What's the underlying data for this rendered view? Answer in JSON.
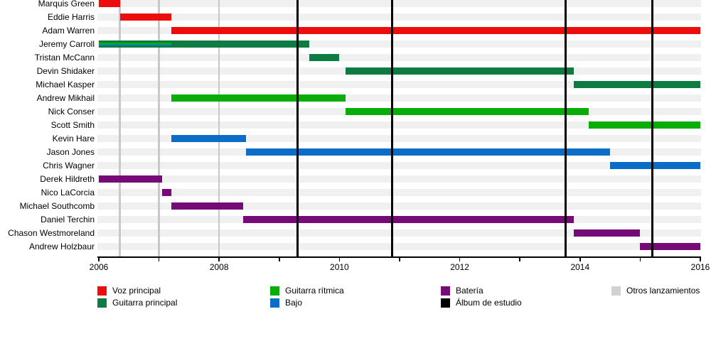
{
  "chart_data": {
    "type": "timeline-gantt",
    "description": "Band members timeline (es)",
    "x_axis": {
      "min": 2006,
      "max": 2016,
      "tick_step": 1,
      "label_step": 2,
      "labels": [
        "2006",
        "2008",
        "2010",
        "2012",
        "2014",
        "2016"
      ]
    },
    "roles": {
      "voz": {
        "label": "Voz principal",
        "color": "#ee0d0d"
      },
      "guitarra_principal": {
        "label": "Guitarra principal",
        "color": "#0e7b43"
      },
      "guitarra_ritmica": {
        "label": "Guitarra rítmica",
        "color": "#09ad09"
      },
      "bajo": {
        "label": "Bajo",
        "color": "#0c6dc6"
      },
      "bateria": {
        "label": "Batería",
        "color": "#760b77"
      },
      "album": {
        "label": "Álbum de estudio",
        "color": "#000000"
      },
      "otros": {
        "label": "Otros lanzamientos",
        "color": "#d2d2d2"
      }
    },
    "members": [
      {
        "name": "Marquis Green",
        "bars": [
          {
            "role": "voz",
            "start": 2006.0,
            "end": 2006.35
          }
        ]
      },
      {
        "name": "Eddie Harris",
        "bars": [
          {
            "role": "voz",
            "start": 2006.35,
            "end": 2007.2
          }
        ]
      },
      {
        "name": "Adam Warren",
        "bars": [
          {
            "role": "voz",
            "start": 2007.2,
            "end": 2016
          }
        ]
      },
      {
        "name": "Jeremy Carroll",
        "bars": [
          {
            "role": "guitarra_principal",
            "start": 2006.0,
            "end": 2009.5
          },
          {
            "role": "guitarra_ritmica",
            "start": 2006.0,
            "end": 2007.2,
            "stripe": [
              0.3,
              0.55
            ]
          },
          {
            "role": "bajo",
            "start": 2006.0,
            "end": 2007.2,
            "stripe": [
              0.55,
              0.8
            ]
          }
        ]
      },
      {
        "name": "Tristan McCann",
        "bars": [
          {
            "role": "guitarra_principal",
            "start": 2009.5,
            "end": 2010.0
          }
        ]
      },
      {
        "name": "Devin Shidaker",
        "bars": [
          {
            "role": "guitarra_principal",
            "start": 2010.1,
            "end": 2013.9
          }
        ]
      },
      {
        "name": "Michael Kasper",
        "bars": [
          {
            "role": "guitarra_principal",
            "start": 2013.9,
            "end": 2016
          }
        ]
      },
      {
        "name": "Andrew Mikhail",
        "bars": [
          {
            "role": "guitarra_ritmica",
            "start": 2007.2,
            "end": 2010.1
          }
        ]
      },
      {
        "name": "Nick Conser",
        "bars": [
          {
            "role": "guitarra_ritmica",
            "start": 2010.1,
            "end": 2014.15
          }
        ]
      },
      {
        "name": "Scott Smith",
        "bars": [
          {
            "role": "guitarra_ritmica",
            "start": 2014.15,
            "end": 2016
          }
        ]
      },
      {
        "name": "Kevin Hare",
        "bars": [
          {
            "role": "bajo",
            "start": 2007.2,
            "end": 2008.45
          }
        ]
      },
      {
        "name": "Jason Jones",
        "bars": [
          {
            "role": "bajo",
            "start": 2008.45,
            "end": 2014.5
          }
        ]
      },
      {
        "name": "Chris Wagner",
        "bars": [
          {
            "role": "bajo",
            "start": 2014.5,
            "end": 2016
          }
        ]
      },
      {
        "name": "Derek Hildreth",
        "bars": [
          {
            "role": "bateria",
            "start": 2006.0,
            "end": 2007.05
          }
        ]
      },
      {
        "name": "Nico LaCorcia",
        "bars": [
          {
            "role": "bateria",
            "start": 2007.05,
            "end": 2007.2
          }
        ]
      },
      {
        "name": "Michael Southcomb",
        "bars": [
          {
            "role": "bateria",
            "start": 2007.2,
            "end": 2008.4
          }
        ]
      },
      {
        "name": "Daniel Terchin",
        "bars": [
          {
            "role": "bateria",
            "start": 2008.4,
            "end": 2013.9
          }
        ]
      },
      {
        "name": "Chason Westmoreland",
        "bars": [
          {
            "role": "bateria",
            "start": 2013.9,
            "end": 2015.0
          }
        ]
      },
      {
        "name": "Andrew Holzbaur",
        "bars": [
          {
            "role": "bateria",
            "start": 2015.0,
            "end": 2016
          }
        ]
      }
    ],
    "album_lines": [
      2009.3,
      2010.87,
      2013.76,
      2015.2
    ],
    "other_release_lines": [
      2006.35,
      2007.0,
      2008.0
    ],
    "legend_columns": [
      [
        "voz",
        "guitarra_principal"
      ],
      [
        "guitarra_ritmica",
        "bajo"
      ],
      [
        "bateria",
        "album"
      ],
      [
        "otros"
      ]
    ]
  }
}
